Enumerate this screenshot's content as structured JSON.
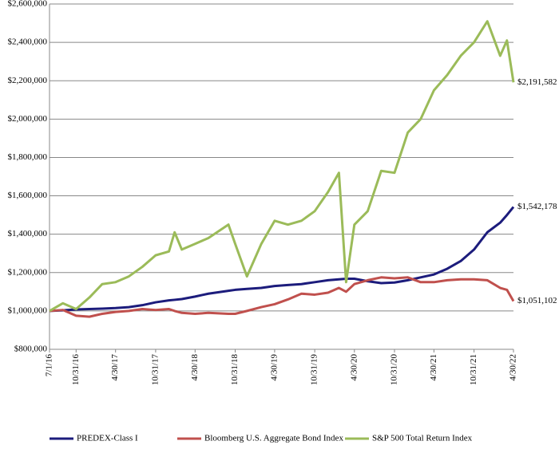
{
  "chart_data": {
    "type": "line",
    "x": [
      "7/1/16",
      "8/31/16",
      "10/31/16",
      "12/31/16",
      "2/28/17",
      "4/30/17",
      "6/30/17",
      "8/31/17",
      "10/31/17",
      "12/31/17",
      "1/26/18",
      "2/28/18",
      "4/30/18",
      "6/30/18",
      "9/30/18",
      "10/31/18",
      "12/24/18",
      "2/28/19",
      "4/30/19",
      "6/30/19",
      "8/31/19",
      "10/31/19",
      "12/31/19",
      "2/19/20",
      "3/23/20",
      "4/30/20",
      "6/30/20",
      "8/31/20",
      "10/31/20",
      "12/31/20",
      "2/28/21",
      "4/30/21",
      "6/30/21",
      "8/31/21",
      "10/31/21",
      "12/31/21",
      "2/28/22",
      "3/31/22",
      "4/30/22"
    ],
    "series": [
      {
        "name": "PREDEX-Class I",
        "color": "#1c1c7c",
        "end_label": "$1,542,178",
        "values": [
          1000000,
          1003000,
          1008000,
          1010000,
          1012000,
          1015000,
          1020000,
          1030000,
          1045000,
          1055000,
          1058000,
          1062000,
          1075000,
          1090000,
          1105000,
          1110000,
          1115000,
          1120000,
          1130000,
          1135000,
          1140000,
          1150000,
          1160000,
          1165000,
          1168000,
          1168000,
          1155000,
          1145000,
          1148000,
          1160000,
          1175000,
          1190000,
          1220000,
          1260000,
          1320000,
          1410000,
          1460000,
          1500000,
          1542178
        ]
      },
      {
        "name": "Bloomberg U.S. Aggregate Bond Index",
        "color": "#c0504d",
        "end_label": "$1,051,102",
        "values": [
          1000000,
          1005000,
          975000,
          970000,
          985000,
          995000,
          1000000,
          1010000,
          1005000,
          1010000,
          1000000,
          990000,
          985000,
          990000,
          985000,
          985000,
          1000000,
          1020000,
          1035000,
          1060000,
          1090000,
          1085000,
          1095000,
          1120000,
          1100000,
          1140000,
          1160000,
          1175000,
          1170000,
          1175000,
          1150000,
          1150000,
          1160000,
          1165000,
          1165000,
          1160000,
          1120000,
          1110000,
          1051102
        ]
      },
      {
        "name": "S&P 500 Total Return Index",
        "color": "#9bbb59",
        "end_label": "$2,191,582",
        "values": [
          1000000,
          1040000,
          1010000,
          1070000,
          1140000,
          1150000,
          1180000,
          1230000,
          1290000,
          1310000,
          1410000,
          1320000,
          1350000,
          1380000,
          1450000,
          1350000,
          1180000,
          1350000,
          1470000,
          1450000,
          1470000,
          1520000,
          1620000,
          1720000,
          1150000,
          1450000,
          1520000,
          1730000,
          1720000,
          1930000,
          2000000,
          2150000,
          2230000,
          2330000,
          2400000,
          2510000,
          2330000,
          2410000,
          2191582
        ]
      }
    ],
    "xlim": [
      "7/1/16",
      "4/30/22"
    ],
    "xticks": [
      "7/1/16",
      "10/31/16",
      "4/30/17",
      "10/31/17",
      "4/30/18",
      "10/31/18",
      "4/30/19",
      "10/31/19",
      "4/30/20",
      "10/31/20",
      "4/30/21",
      "10/31/21",
      "4/30/22"
    ],
    "ylim": [
      800000,
      2600000
    ],
    "yticks": [
      {
        "value": 800000,
        "label": "$800,000"
      },
      {
        "value": 1000000,
        "label": "$1,000,000"
      },
      {
        "value": 1200000,
        "label": "$1,200,000"
      },
      {
        "value": 1400000,
        "label": "$1,400,000"
      },
      {
        "value": 1600000,
        "label": "$1,600,000"
      },
      {
        "value": 1800000,
        "label": "$1,800,000"
      },
      {
        "value": 2000000,
        "label": "$2,000,000"
      },
      {
        "value": 2200000,
        "label": "$2,200,000"
      },
      {
        "value": 2400000,
        "label": "$2,400,000"
      },
      {
        "value": 2600000,
        "label": "$2,600,000"
      }
    ],
    "grid": true,
    "legend": "bottom"
  }
}
